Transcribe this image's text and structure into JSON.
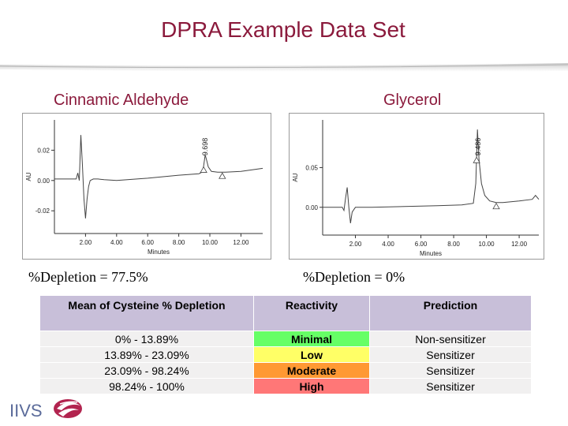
{
  "page": {
    "title": "DPRA Example Data Set",
    "left_heading": "Cinnamic Aldehyde",
    "right_heading": "Glycerol",
    "left_depletion": "%Depletion = 77.5%",
    "right_depletion": "%Depletion = 0%",
    "logo_text": "IIVS",
    "colors": {
      "title": "#8b1a3c",
      "header": "#c8bfd9",
      "minimal": "#66ff66",
      "low": "#ffff66",
      "moderate": "#ff9933",
      "high": "#ff7777"
    }
  },
  "table": {
    "headers": [
      "Mean of Cysteine % Depletion",
      "Reactivity",
      "Prediction"
    ],
    "rows": [
      {
        "range": "0% - 13.89%",
        "reactivity": "Minimal",
        "prediction": "Non-sensitizer",
        "color": "#66ff66"
      },
      {
        "range": "13.89% - 23.09%",
        "reactivity": "Low",
        "prediction": "Sensitizer",
        "color": "#ffff66"
      },
      {
        "range": "23.09% - 98.24%",
        "reactivity": "Moderate",
        "prediction": "Sensitizer",
        "color": "#ff9933"
      },
      {
        "range": "98.24% - 100%",
        "reactivity": "High",
        "prediction": "Sensitizer",
        "color": "#ff7777"
      }
    ]
  },
  "chart_data": [
    {
      "type": "line",
      "title": "Cinnamic Aldehyde",
      "xlabel": "Minutes",
      "ylabel": "AU",
      "xlim": [
        0,
        13.4
      ],
      "ylim": [
        -0.035,
        0.04
      ],
      "x_ticks": [
        "2.00",
        "4.00",
        "6.00",
        "8.00",
        "10.00",
        "12.00"
      ],
      "x_tick_values": [
        2,
        4,
        6,
        8,
        10,
        12
      ],
      "y_ticks": [
        "0.02",
        "0.00",
        "-0.02"
      ],
      "y_tick_values": [
        0.02,
        0,
        -0.02
      ],
      "peak_label": "9.698",
      "peak_label_x": 9.7,
      "series": [
        {
          "x": [
            0,
            1.4,
            1.5,
            1.6,
            1.7,
            1.8,
            1.9,
            2.0,
            2.1,
            2.2,
            2.3,
            2.5,
            2.8,
            3.2,
            4.0,
            6.0,
            8.0,
            9.3,
            9.5,
            9.6,
            9.7,
            9.8,
            9.9,
            10.1,
            10.5,
            11.0,
            12.0,
            13.4
          ],
          "y": [
            0.001,
            0.001,
            0.005,
            0.0,
            0.03,
            0.01,
            -0.012,
            -0.025,
            -0.012,
            -0.004,
            0.0,
            0.001,
            0.001,
            0.0005,
            0.0,
            0.0015,
            0.0035,
            0.0045,
            0.0055,
            0.0095,
            0.017,
            0.013,
            0.009,
            0.006,
            0.0055,
            0.0055,
            0.006,
            0.008
          ]
        }
      ],
      "markers_x": [
        9.6,
        10.8
      ]
    },
    {
      "type": "line",
      "title": "Glycerol",
      "xlabel": "Minutes",
      "ylabel": "AU",
      "xlim": [
        0,
        13.2
      ],
      "ylim": [
        -0.035,
        0.11
      ],
      "x_ticks": [
        "2.00",
        "4.00",
        "6.00",
        "8.00",
        "10.00",
        "12.00"
      ],
      "x_tick_values": [
        2,
        4,
        6,
        8,
        10,
        12
      ],
      "y_ticks": [
        "0.05",
        "0.00"
      ],
      "y_tick_values": [
        0.05,
        0
      ],
      "peak_label": "9.486",
      "peak_label_x": 9.5,
      "series": [
        {
          "x": [
            0,
            1.2,
            1.3,
            1.4,
            1.5,
            1.6,
            1.7,
            1.8,
            2.0,
            3.0,
            5.0,
            7.0,
            8.5,
            9.2,
            9.35,
            9.45,
            9.55,
            9.7,
            9.9,
            10.2,
            10.6,
            11.0,
            12.0,
            12.8,
            13.0,
            13.2
          ],
          "y": [
            0.0,
            0.0,
            -0.004,
            0.012,
            0.025,
            0.0,
            -0.02,
            -0.006,
            0.0,
            0.0,
            0.001,
            0.002,
            0.003,
            0.005,
            0.03,
            0.098,
            0.06,
            0.03,
            0.015,
            0.008,
            0.006,
            0.006,
            0.008,
            0.01,
            0.015,
            0.01
          ]
        }
      ],
      "markers_x": [
        9.4,
        10.6
      ]
    }
  ]
}
